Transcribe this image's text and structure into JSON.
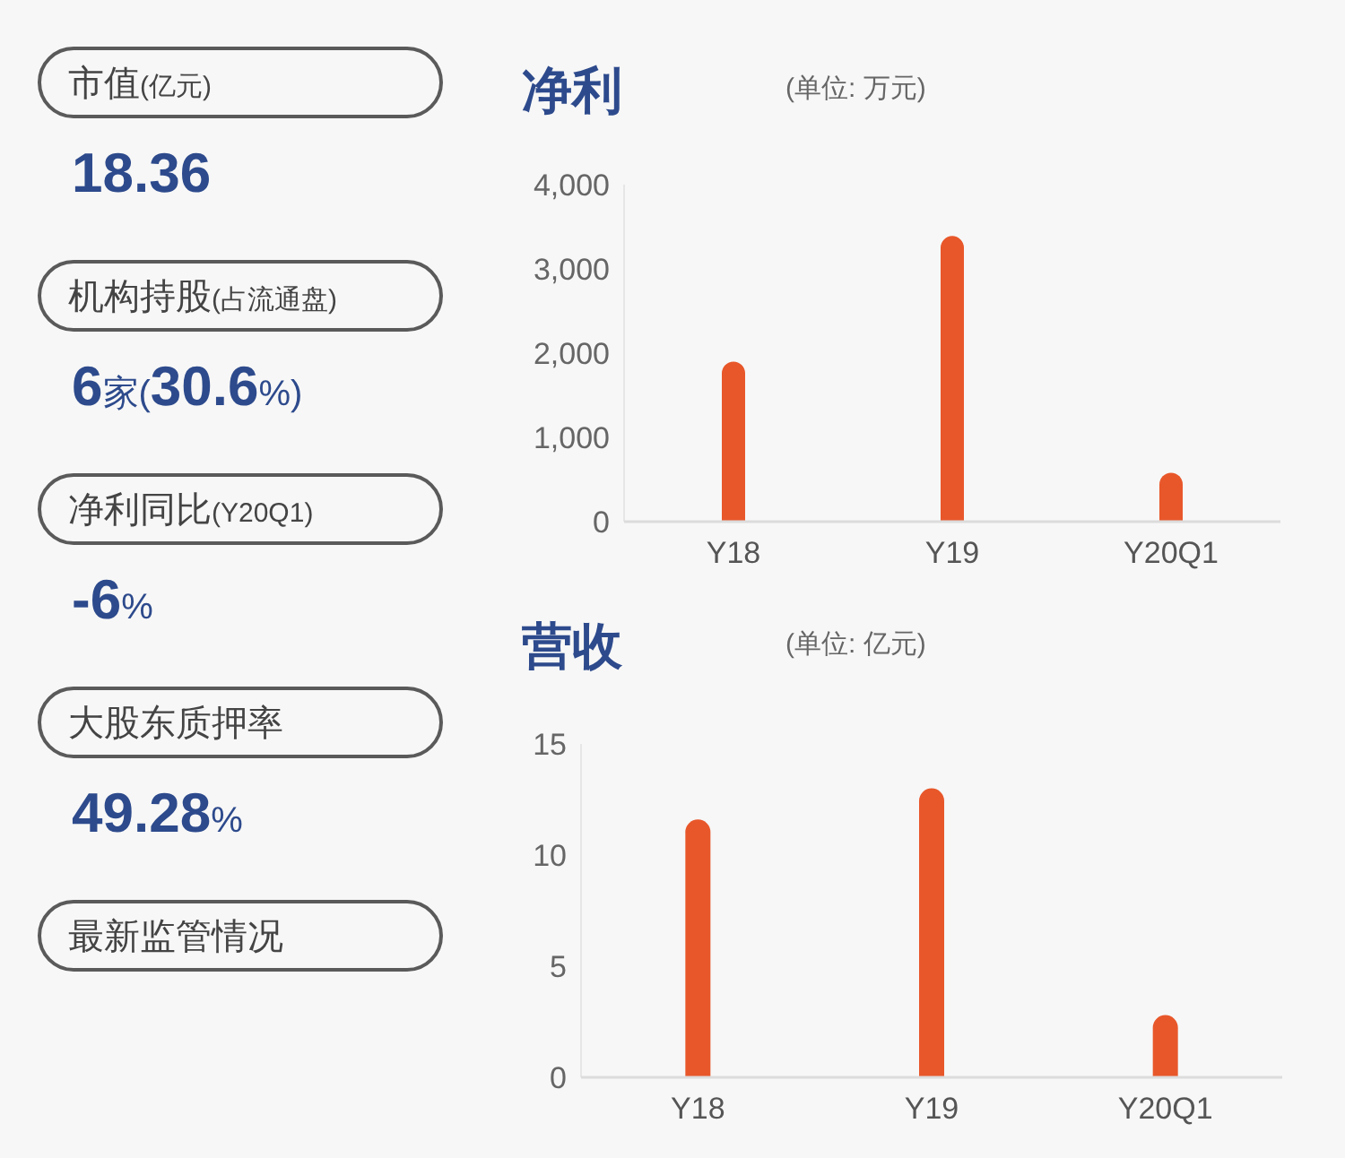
{
  "chart_data": [
    {
      "type": "other",
      "annotations": [
        "市值(亿元)",
        "18.36",
        "机构持股(占流通盘)",
        "6家(30.6%)",
        "净利同比(Y20Q1)",
        "-6%",
        "大股东质押率",
        "49.28%",
        "最新监管情况"
      ]
    },
    {
      "type": "bar",
      "title": "净利",
      "subtitle": "(单位: 万元)",
      "categories": [
        "Y18",
        "Y19",
        "Y20Q1"
      ],
      "values": [
        1900,
        3390,
        580
      ],
      "color": "#e8572a",
      "ylim": [
        0,
        4000
      ],
      "yticks": [
        0,
        {
          "value": 1000,
          "label": "1,000"
        },
        {
          "value": 2000,
          "label": "2,000"
        },
        {
          "value": 3000,
          "label": "3,000"
        },
        {
          "value": 4000,
          "label": "4,000"
        }
      ]
    },
    {
      "type": "bar",
      "title": "营收",
      "subtitle": "(单位: 亿元)",
      "categories": [
        "Y18",
        "Y19",
        "Y20Q1"
      ],
      "values": [
        11.6,
        13.0,
        2.8
      ],
      "color": "#e8572a",
      "ylim": [
        0,
        15
      ],
      "yticks": [
        0,
        5,
        10,
        15
      ]
    }
  ]
}
